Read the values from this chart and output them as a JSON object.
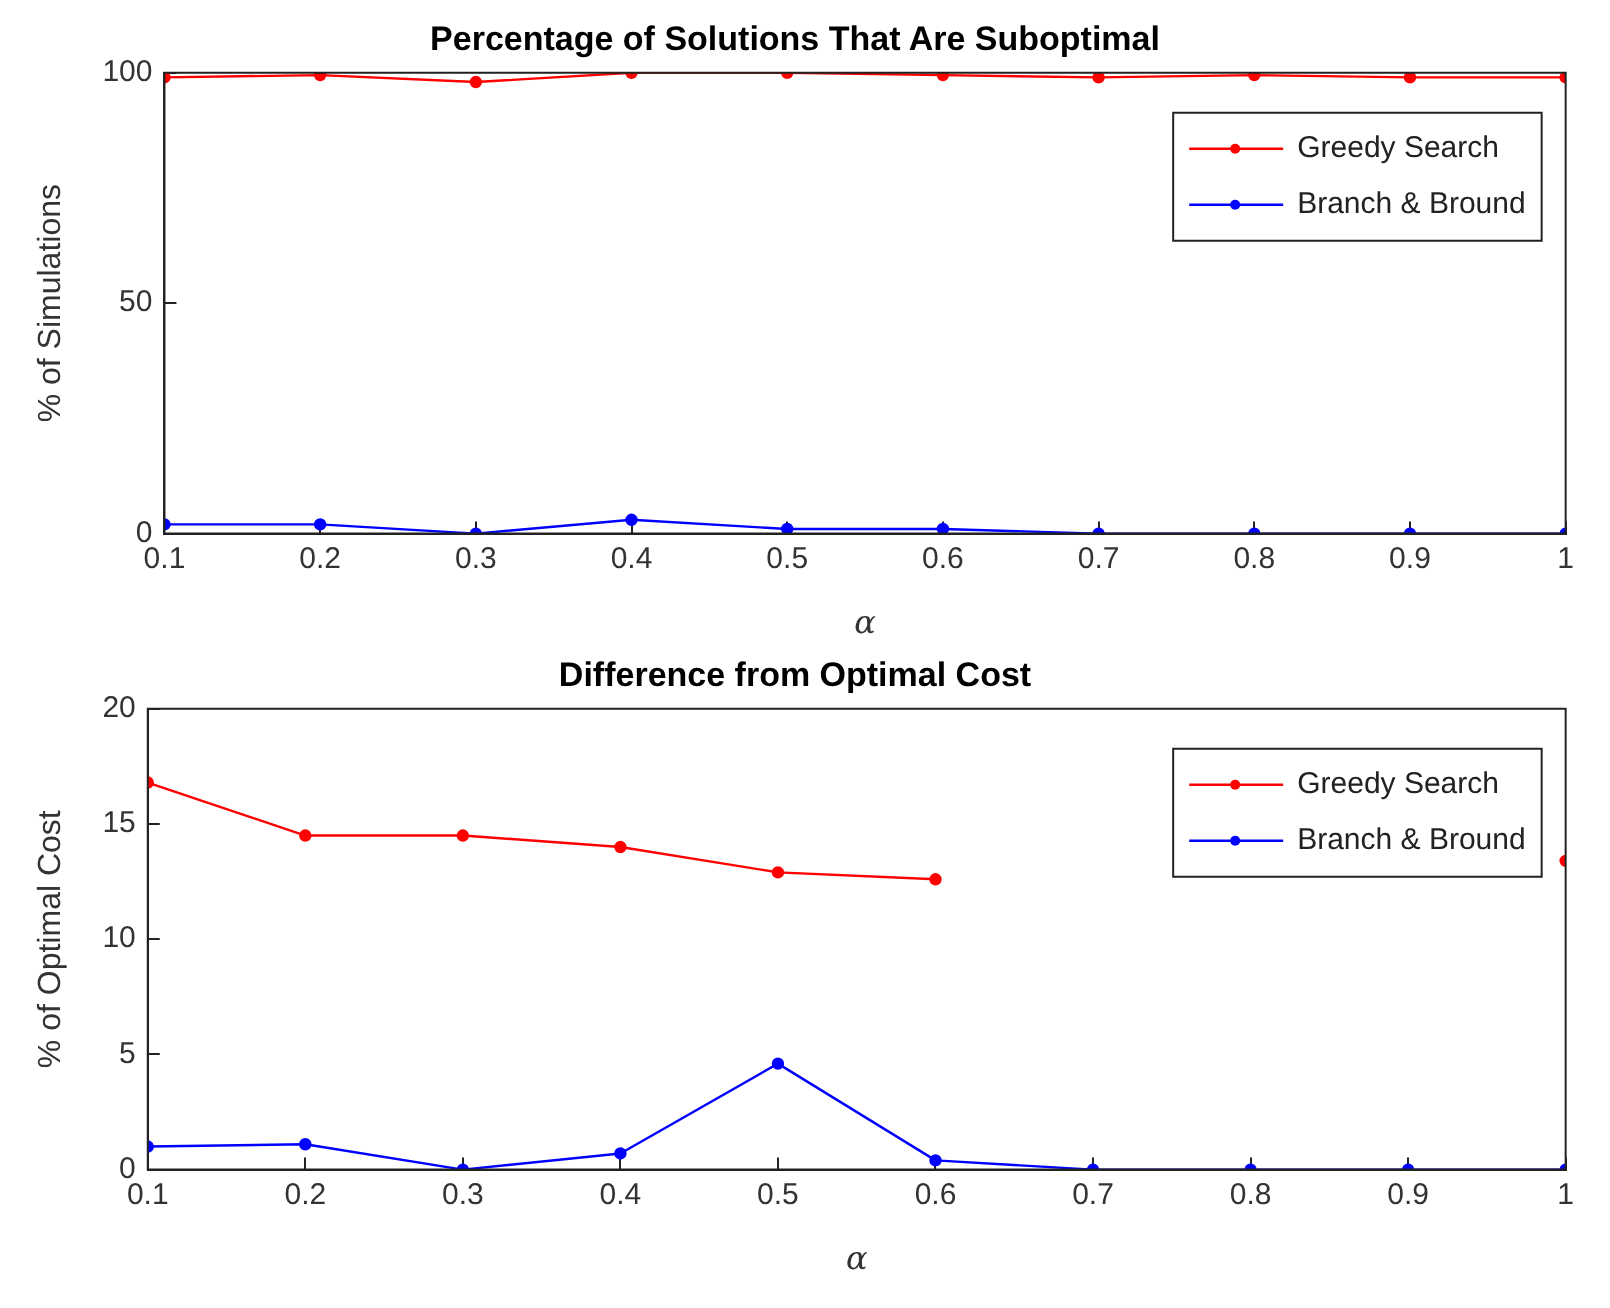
{
  "chart_data": [
    {
      "type": "line",
      "title": "Percentage of Solutions That Are Suboptimal",
      "xlabel": "α",
      "ylabel": "% of Simulations",
      "x": [
        0.1,
        0.2,
        0.3,
        0.4,
        0.5,
        0.6,
        0.7,
        0.8,
        0.9,
        1
      ],
      "xlim": [
        0.1,
        1
      ],
      "xticks": [
        0.1,
        0.2,
        0.3,
        0.4,
        0.5,
        0.6,
        0.7,
        0.8,
        0.9,
        1
      ],
      "ylim": [
        0,
        100
      ],
      "yticks": [
        0,
        50,
        100
      ],
      "legend": "top right",
      "grid": false,
      "marker": "circle",
      "series": [
        {
          "name": "Greedy Search",
          "color": "#ff0000",
          "values": [
            99,
            99.5,
            98,
            100,
            100,
            99.5,
            99,
            99.5,
            99,
            99
          ]
        },
        {
          "name": "Branch & Bround",
          "color": "#0000ff",
          "values": [
            2,
            2,
            0,
            3,
            1,
            1,
            0,
            0,
            0,
            0
          ]
        }
      ]
    },
    {
      "type": "line",
      "title": "Difference from Optimal Cost",
      "xlabel": "α",
      "ylabel": "% of Optimal Cost",
      "x": [
        0.1,
        0.2,
        0.3,
        0.4,
        0.5,
        0.6,
        0.7,
        0.8,
        0.9,
        1
      ],
      "xlim": [
        0.1,
        1
      ],
      "xticks": [
        0.1,
        0.2,
        0.3,
        0.4,
        0.5,
        0.6,
        0.7,
        0.8,
        0.9,
        1
      ],
      "ylim": [
        0,
        20
      ],
      "yticks": [
        0,
        5,
        10,
        15,
        20
      ],
      "legend": "top right",
      "grid": false,
      "marker": "circle",
      "series": [
        {
          "name": "Greedy Search",
          "color": "#ff0000",
          "values": [
            16.8,
            14.5,
            14.5,
            14,
            12.9,
            12.6,
            null,
            null,
            null,
            13.4
          ]
        },
        {
          "name": "Branch & Bround",
          "color": "#0000ff",
          "values": [
            1,
            1.1,
            0,
            0.7,
            4.6,
            0.4,
            0,
            0,
            0,
            0
          ]
        }
      ]
    }
  ]
}
